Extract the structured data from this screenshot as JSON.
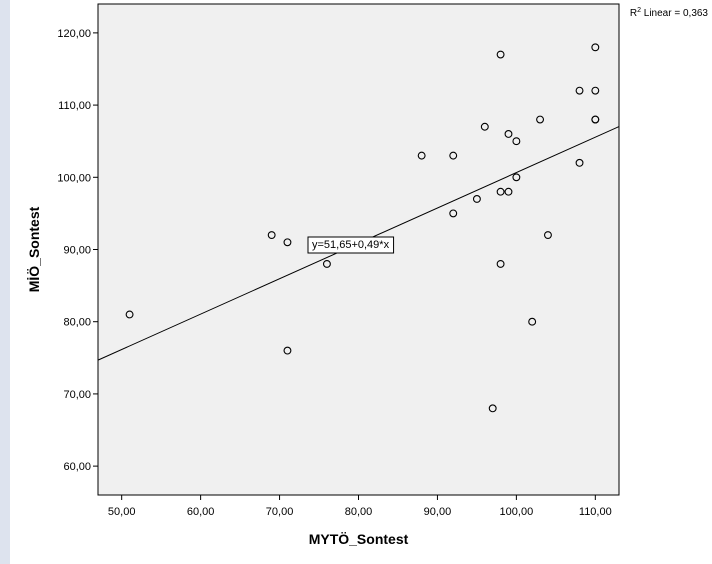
{
  "colors": {
    "plot_background": "#f0f0f0",
    "point_stroke": "#000000",
    "fit_line": "#000000",
    "left_strip": "#dde3ee"
  },
  "chart_data": {
    "type": "scatter",
    "title": "",
    "xlabel": "MYTÖ_Sontest",
    "ylabel": "MİÖ_Sontest",
    "xlim": [
      47,
      113
    ],
    "ylim": [
      56,
      124
    ],
    "x_ticks": [
      50,
      60,
      70,
      80,
      90,
      100,
      110
    ],
    "x_tick_labels": [
      "50,00",
      "60,00",
      "70,00",
      "80,00",
      "90,00",
      "100,00",
      "110,00"
    ],
    "y_ticks": [
      60,
      70,
      80,
      90,
      100,
      110,
      120
    ],
    "y_tick_labels": [
      "60,00",
      "70,00",
      "80,00",
      "90,00",
      "100,00",
      "110,00",
      "120,00"
    ],
    "grid": false,
    "points": [
      {
        "x": 51,
        "y": 81
      },
      {
        "x": 69,
        "y": 92
      },
      {
        "x": 71,
        "y": 91
      },
      {
        "x": 71,
        "y": 76
      },
      {
        "x": 76,
        "y": 88
      },
      {
        "x": 88,
        "y": 103
      },
      {
        "x": 92,
        "y": 103
      },
      {
        "x": 92,
        "y": 95
      },
      {
        "x": 95,
        "y": 97
      },
      {
        "x": 96,
        "y": 107
      },
      {
        "x": 97,
        "y": 68
      },
      {
        "x": 98,
        "y": 117
      },
      {
        "x": 98,
        "y": 98
      },
      {
        "x": 98,
        "y": 88
      },
      {
        "x": 99,
        "y": 106
      },
      {
        "x": 99,
        "y": 98
      },
      {
        "x": 100,
        "y": 105
      },
      {
        "x": 100,
        "y": 100
      },
      {
        "x": 102,
        "y": 80
      },
      {
        "x": 103,
        "y": 108
      },
      {
        "x": 104,
        "y": 92
      },
      {
        "x": 108,
        "y": 112
      },
      {
        "x": 108,
        "y": 102
      },
      {
        "x": 110,
        "y": 118
      },
      {
        "x": 110,
        "y": 112
      },
      {
        "x": 110,
        "y": 108
      },
      {
        "x": 110,
        "y": 108
      }
    ],
    "fit_line": {
      "intercept": 51.65,
      "slope": 0.49,
      "equation_label": "y=51,65+0,49*x",
      "r2_prefix": "R",
      "r2_superscript": "2",
      "r2_suffix": " Linear = 0,363"
    }
  }
}
